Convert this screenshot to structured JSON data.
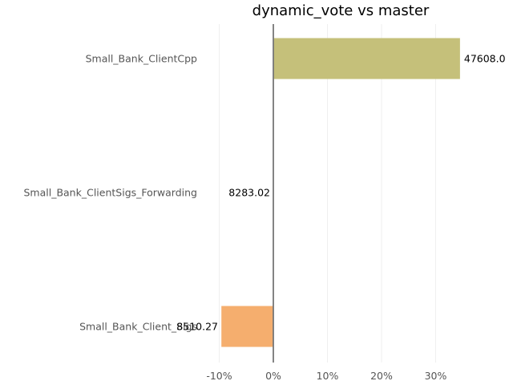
{
  "chart_data": {
    "type": "bar",
    "orientation": "horizontal",
    "title": "dynamic_vote vs master",
    "xlabel": "",
    "ylabel": "",
    "xlim": [
      -10,
      40
    ],
    "xticks": [
      -10,
      0,
      10,
      20,
      30
    ],
    "xtick_labels": [
      "-10%",
      "0%",
      "10%",
      "20%",
      "30%"
    ],
    "grid": true,
    "categories": [
      "Small_Bank_ClientCpp",
      "Small_Bank_ClientSigs_Forwarding",
      "Small_Bank_Client_Sigs"
    ],
    "values": [
      34.5,
      0,
      -9.6
    ],
    "data_labels": [
      "47608.0",
      "8283.02",
      "8510.27"
    ],
    "colors": [
      "#c5c07a",
      "#c5c07a",
      "#f5ae6e"
    ]
  }
}
